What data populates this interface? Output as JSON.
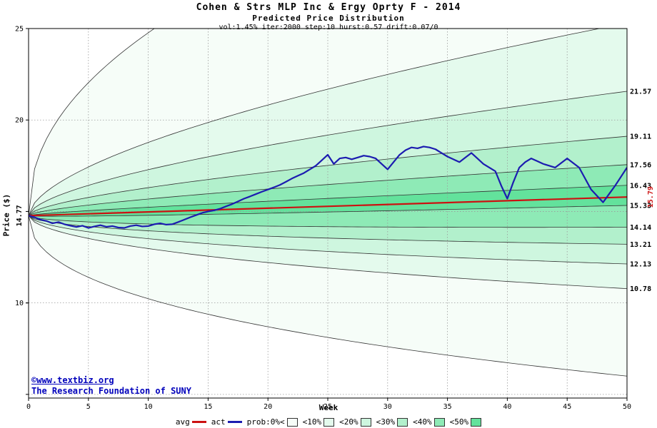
{
  "header": {
    "title": "Cohen & Strs MLP Inc & Ergy Oprty F - 2014",
    "subtitle": "Predicted Price Distribution",
    "params": "vol:1.45% iter:2000 step:10 hurst:0.57 drift:0.07/0"
  },
  "chart_data": {
    "type": "area",
    "title": "Cohen & Strs MLP Inc & Ergy Oprty F - 2014",
    "subtitle": "Predicted Price Distribution",
    "xlabel": "Week",
    "ylabel": "Price ($)",
    "xlim": [
      0,
      50
    ],
    "ylim": [
      4.8,
      25
    ],
    "x_ticks": [
      0,
      5,
      10,
      15,
      20,
      25,
      30,
      35,
      40,
      45,
      50
    ],
    "y_ticks": [
      {
        "value": 25,
        "label": "25"
      },
      {
        "value": 20,
        "label": "20"
      },
      {
        "value": 15,
        "label": ""
      },
      {
        "value": 10,
        "label": ""
      },
      {
        "value": 10,
        "label": "10"
      },
      {
        "value": 5,
        "label": ""
      }
    ],
    "y_gridlines": [
      20,
      15,
      10,
      5
    ],
    "start_price": 14.77,
    "start_label": "14.77",
    "avg_final": 15.79,
    "avg_final_label": "15.79",
    "hurst": 0.57,
    "avg_color": "#cc1111",
    "act_color": "#1c1cb0",
    "grid_color": "#9a9a9a",
    "edge_color": "#333333",
    "bands": [
      {
        "label": "prob:0%<",
        "color": "#f6fdf8",
        "top_final": 36.0,
        "bottom_final": 6.0,
        "exp": 0.45
      },
      {
        "label": "<10%",
        "color": "#e4faed",
        "top_final": 25.3,
        "bottom_final": 10.78
      },
      {
        "label": "<20%",
        "color": "#cef6df",
        "top_final": 21.57,
        "bottom_final": 12.13
      },
      {
        "label": "<30%",
        "color": "#b2f0cc",
        "top_final": 19.11,
        "bottom_final": 13.21
      },
      {
        "label": "<40%",
        "color": "#8eeab6",
        "top_final": 17.56,
        "bottom_final": 14.14
      },
      {
        "label": "<50%",
        "color": "#63e29c",
        "top_final": 16.43,
        "bottom_final": 15.33
      }
    ],
    "right_labels": [
      {
        "value": 21.57,
        "label": "21.57"
      },
      {
        "value": 19.11,
        "label": "19.11"
      },
      {
        "value": 17.56,
        "label": "17.56"
      },
      {
        "value": 16.43,
        "label": "16.43"
      },
      {
        "value": 15.33,
        "label": "15.33"
      },
      {
        "value": 14.14,
        "label": "14.14"
      },
      {
        "value": 13.21,
        "label": "13.21"
      },
      {
        "value": 12.13,
        "label": "12.13"
      },
      {
        "value": 10.78,
        "label": "10.78"
      }
    ],
    "actual_series": [
      [
        0,
        14.77
      ],
      [
        0.5,
        14.68
      ],
      [
        1,
        14.55
      ],
      [
        1.5,
        14.48
      ],
      [
        2,
        14.35
      ],
      [
        2.5,
        14.42
      ],
      [
        3,
        14.3
      ],
      [
        3.5,
        14.22
      ],
      [
        4,
        14.15
      ],
      [
        4.5,
        14.22
      ],
      [
        5,
        14.1
      ],
      [
        5.5,
        14.18
      ],
      [
        6,
        14.25
      ],
      [
        6.5,
        14.16
      ],
      [
        7,
        14.2
      ],
      [
        7.5,
        14.12
      ],
      [
        8,
        14.1
      ],
      [
        8.5,
        14.2
      ],
      [
        9,
        14.25
      ],
      [
        9.5,
        14.18
      ],
      [
        10,
        14.2
      ],
      [
        10.5,
        14.3
      ],
      [
        11,
        14.35
      ],
      [
        11.5,
        14.28
      ],
      [
        12,
        14.3
      ],
      [
        12.5,
        14.42
      ],
      [
        13,
        14.55
      ],
      [
        13.5,
        14.68
      ],
      [
        14,
        14.8
      ],
      [
        14.5,
        14.92
      ],
      [
        15,
        15.0
      ],
      [
        15.5,
        15.06
      ],
      [
        16,
        15.15
      ],
      [
        16.5,
        15.28
      ],
      [
        17,
        15.4
      ],
      [
        17.5,
        15.55
      ],
      [
        18,
        15.7
      ],
      [
        18.5,
        15.82
      ],
      [
        19,
        15.95
      ],
      [
        19.5,
        16.08
      ],
      [
        20,
        16.2
      ],
      [
        20.5,
        16.32
      ],
      [
        21,
        16.45
      ],
      [
        21.5,
        16.62
      ],
      [
        22,
        16.8
      ],
      [
        22.5,
        16.95
      ],
      [
        23,
        17.1
      ],
      [
        23.5,
        17.3
      ],
      [
        24,
        17.5
      ],
      [
        24.5,
        17.8
      ],
      [
        25,
        18.1
      ],
      [
        25.5,
        17.6
      ],
      [
        26,
        17.9
      ],
      [
        26.5,
        17.95
      ],
      [
        27,
        17.85
      ],
      [
        27.5,
        17.95
      ],
      [
        28,
        18.05
      ],
      [
        28.5,
        18.0
      ],
      [
        29,
        17.9
      ],
      [
        29.5,
        17.6
      ],
      [
        30,
        17.3
      ],
      [
        30.5,
        17.7
      ],
      [
        31,
        18.1
      ],
      [
        31.5,
        18.35
      ],
      [
        32,
        18.5
      ],
      [
        32.5,
        18.45
      ],
      [
        33,
        18.55
      ],
      [
        33.5,
        18.5
      ],
      [
        34,
        18.4
      ],
      [
        34.5,
        18.2
      ],
      [
        35,
        18.0
      ],
      [
        35.5,
        17.85
      ],
      [
        36,
        17.7
      ],
      [
        36.5,
        17.95
      ],
      [
        37,
        18.2
      ],
      [
        37.5,
        17.9
      ],
      [
        38,
        17.6
      ],
      [
        38.5,
        17.4
      ],
      [
        39,
        17.2
      ],
      [
        39.5,
        16.4
      ],
      [
        40,
        15.7
      ],
      [
        40.5,
        16.6
      ],
      [
        41,
        17.4
      ],
      [
        41.5,
        17.7
      ],
      [
        42,
        17.9
      ],
      [
        42.5,
        17.75
      ],
      [
        43,
        17.6
      ],
      [
        43.5,
        17.5
      ],
      [
        44,
        17.4
      ],
      [
        44.5,
        17.65
      ],
      [
        45,
        17.9
      ],
      [
        45.5,
        17.65
      ],
      [
        46,
        17.4
      ],
      [
        46.5,
        16.8
      ],
      [
        47,
        16.2
      ],
      [
        47.5,
        15.85
      ],
      [
        48,
        15.5
      ],
      [
        48.5,
        15.95
      ],
      [
        49,
        16.4
      ],
      [
        49.5,
        16.9
      ],
      [
        50,
        17.4
      ]
    ]
  },
  "legend": {
    "avg_label": "avg",
    "act_label": "act"
  },
  "footer": {
    "copyright": "©www.textbiz.org",
    "org": "The Research Foundation of SUNY"
  }
}
